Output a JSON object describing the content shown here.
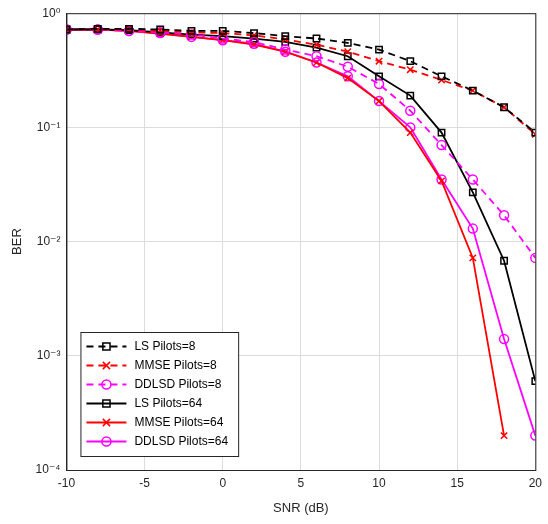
{
  "chart_data": {
    "type": "line",
    "x_label": "SNR (dB)",
    "y_label": "BER",
    "x": [
      -10,
      -8,
      -6,
      -4,
      -2,
      0,
      2,
      4,
      6,
      8,
      10,
      12,
      14,
      16,
      18,
      20
    ],
    "xlim": [
      -10,
      20
    ],
    "xticks": [
      -10,
      -5,
      0,
      5,
      10,
      15,
      20
    ],
    "ylim": [
      0.0001,
      1
    ],
    "yticks": [
      {
        "value": 0.0001,
        "label": "10⁻⁴"
      },
      {
        "value": 0.001,
        "label": "10⁻³"
      },
      {
        "value": 0.01,
        "label": "10⁻²"
      },
      {
        "value": 0.1,
        "label": "10⁻¹"
      },
      {
        "value": 1,
        "label": "10⁰"
      }
    ],
    "log": "y",
    "grid": true,
    "legend": "lower left",
    "series": [
      {
        "name": "LS Pilots=8",
        "color": "#000000",
        "marker": "square",
        "line_style": "dashed",
        "values": [
          0.72,
          0.73,
          0.73,
          0.72,
          0.7,
          0.7,
          0.67,
          0.63,
          0.6,
          0.55,
          0.48,
          0.38,
          0.28,
          0.21,
          0.15,
          0.09
        ]
      },
      {
        "name": "MMSE Pilots=8",
        "color": "#ff0000",
        "marker": "cross",
        "line_style": "dashed",
        "values": [
          0.72,
          0.72,
          0.72,
          0.7,
          0.68,
          0.67,
          0.64,
          0.59,
          0.53,
          0.46,
          0.38,
          0.32,
          0.26,
          0.21,
          0.15,
          0.087
        ]
      },
      {
        "name": "DDLSD Pilots=8",
        "color": "#ff00ff",
        "marker": "circle",
        "line_style": "dashed",
        "values": [
          0.72,
          0.72,
          0.7,
          0.68,
          0.65,
          0.6,
          0.56,
          0.48,
          0.42,
          0.34,
          0.24,
          0.14,
          0.07,
          0.035,
          0.017,
          0.0072
        ]
      },
      {
        "name": "LS Pilots=64",
        "color": "#000000",
        "marker": "square",
        "line_style": "solid",
        "values": [
          0.72,
          0.72,
          0.71,
          0.68,
          0.65,
          0.63,
          0.6,
          0.56,
          0.5,
          0.42,
          0.28,
          0.19,
          0.09,
          0.027,
          0.0068,
          0.0006
        ]
      },
      {
        "name": "MMSE Pilots=64",
        "color": "#ff0000",
        "marker": "cross",
        "line_style": "solid",
        "values": [
          0.72,
          0.72,
          0.7,
          0.66,
          0.62,
          0.58,
          0.53,
          0.46,
          0.37,
          0.27,
          0.17,
          0.09,
          0.034,
          0.0072,
          0.0002,
          null
        ]
      },
      {
        "name": "DDLSD Pilots=64",
        "color": "#ff00ff",
        "marker": "circle",
        "line_style": "solid",
        "values": [
          0.72,
          0.72,
          0.7,
          0.67,
          0.62,
          0.58,
          0.54,
          0.46,
          0.37,
          0.28,
          0.17,
          0.1,
          0.035,
          0.013,
          0.0014,
          0.0002
        ]
      }
    ]
  }
}
